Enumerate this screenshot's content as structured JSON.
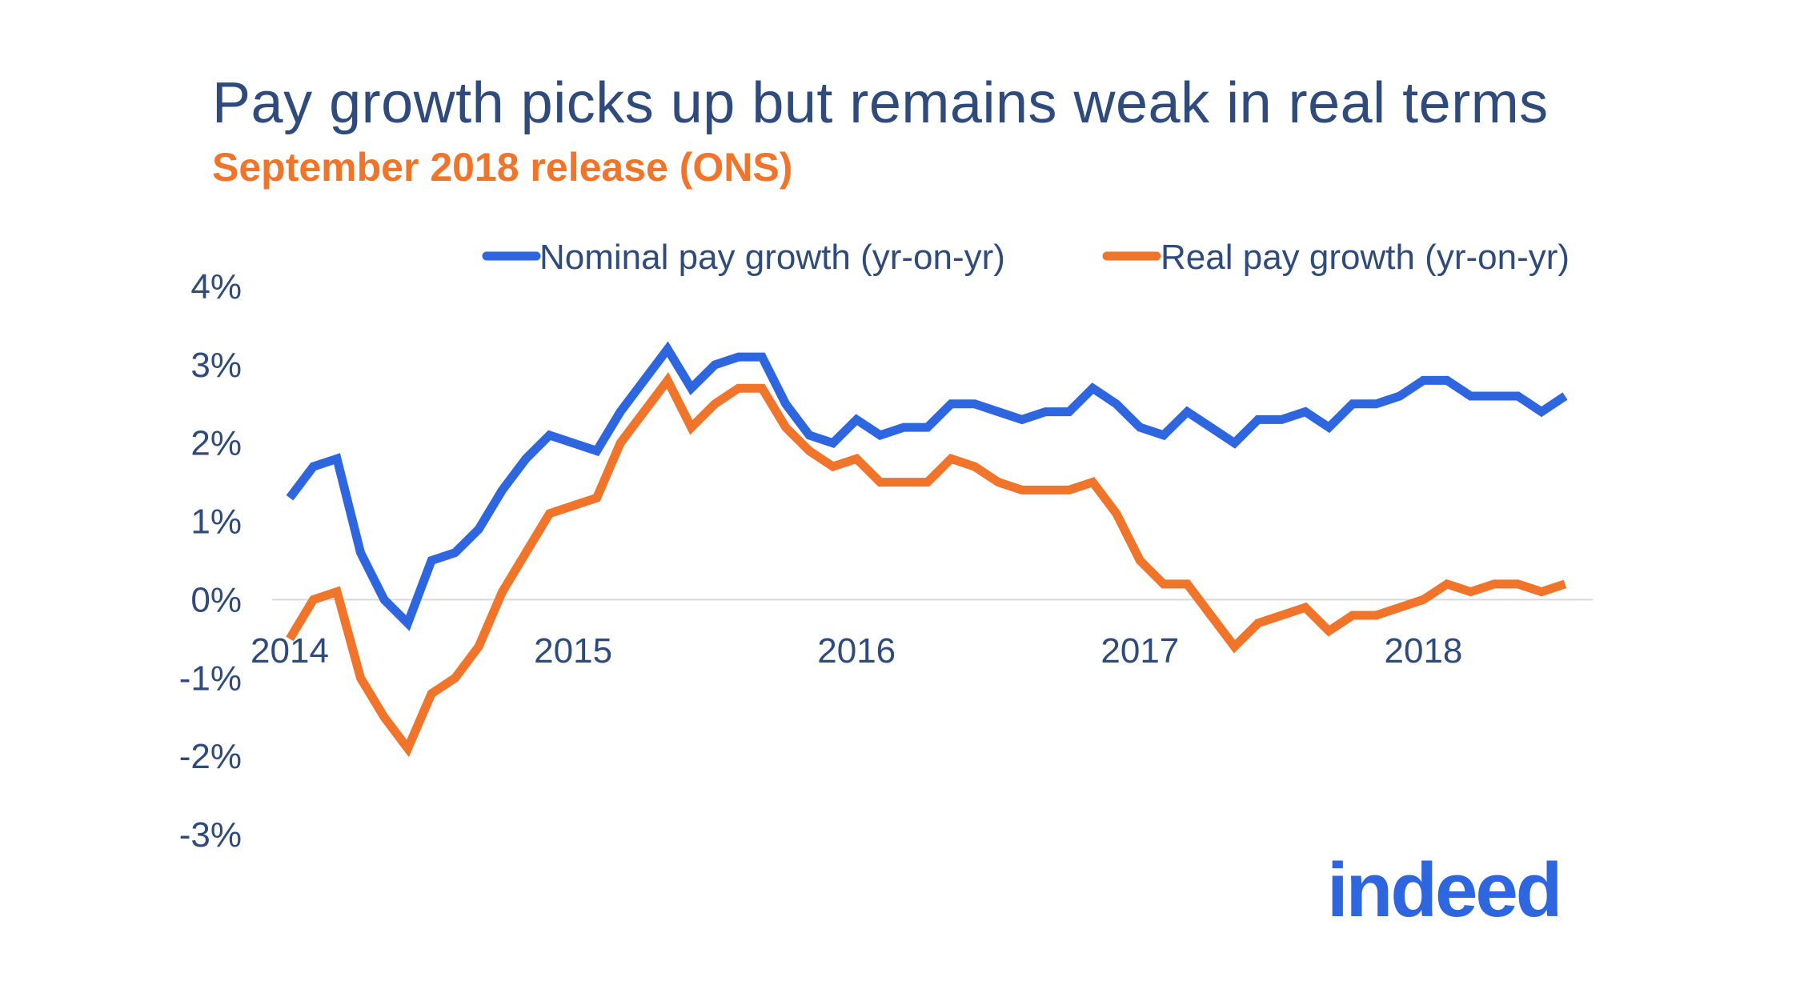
{
  "title": "Pay growth picks up but remains weak in real terms",
  "subtitle": "September 2018 release (ONS)",
  "logo": "indeed",
  "colors": {
    "nominal": "#2e66e0",
    "real": "#f0742a",
    "title": "#2f4b7c",
    "axis": "#2f4b7c",
    "zero_line": "#d9d9d9"
  },
  "chart_data": {
    "type": "line",
    "title": "Pay growth picks up but remains weak in real terms",
    "subtitle": "September 2018 release (ONS)",
    "xlabel": "",
    "ylabel": "",
    "x_tick_labels": [
      "2014",
      "2015",
      "2016",
      "2017",
      "2018"
    ],
    "y_tick_labels": [
      "4%",
      "3%",
      "2%",
      "1%",
      "0%",
      "-1%",
      "-2%",
      "-3%"
    ],
    "y_ticks": [
      4,
      3,
      2,
      1,
      0,
      -1,
      -2,
      -3
    ],
    "ylim": [
      -3,
      4
    ],
    "xlim": [
      2014.0,
      2018.5833
    ],
    "legend_position": "top",
    "grid": false,
    "x_start": 2014.0,
    "x_step_months": 1,
    "series": [
      {
        "name": "Nominal pay growth (yr-on-yr)",
        "color": "#2e66e0",
        "values": [
          1.3,
          1.7,
          1.8,
          0.6,
          0.0,
          -0.3,
          0.5,
          0.6,
          0.9,
          1.4,
          1.8,
          2.1,
          2.0,
          1.9,
          2.4,
          2.8,
          3.2,
          2.7,
          3.0,
          3.1,
          3.1,
          2.5,
          2.1,
          2.0,
          2.3,
          2.1,
          2.2,
          2.2,
          2.5,
          2.5,
          2.4,
          2.3,
          2.4,
          2.4,
          2.7,
          2.5,
          2.2,
          2.1,
          2.4,
          2.2,
          2.0,
          2.3,
          2.3,
          2.4,
          2.2,
          2.5,
          2.5,
          2.6,
          2.8,
          2.8,
          2.6,
          2.6,
          2.6,
          2.4,
          2.6
        ]
      },
      {
        "name": "Real pay growth (yr-on-yr)",
        "color": "#f0742a",
        "values": [
          -0.5,
          0.0,
          0.1,
          -1.0,
          -1.5,
          -1.9,
          -1.2,
          -1.0,
          -0.6,
          0.1,
          0.6,
          1.1,
          1.2,
          1.3,
          2.0,
          2.4,
          2.8,
          2.2,
          2.5,
          2.7,
          2.7,
          2.2,
          1.9,
          1.7,
          1.8,
          1.5,
          1.5,
          1.5,
          1.8,
          1.7,
          1.5,
          1.4,
          1.4,
          1.4,
          1.5,
          1.1,
          0.5,
          0.2,
          0.2,
          -0.2,
          -0.6,
          -0.3,
          -0.2,
          -0.1,
          -0.4,
          -0.2,
          -0.2,
          -0.1,
          0.0,
          0.2,
          0.1,
          0.2,
          0.2,
          0.1,
          0.2
        ]
      }
    ]
  }
}
